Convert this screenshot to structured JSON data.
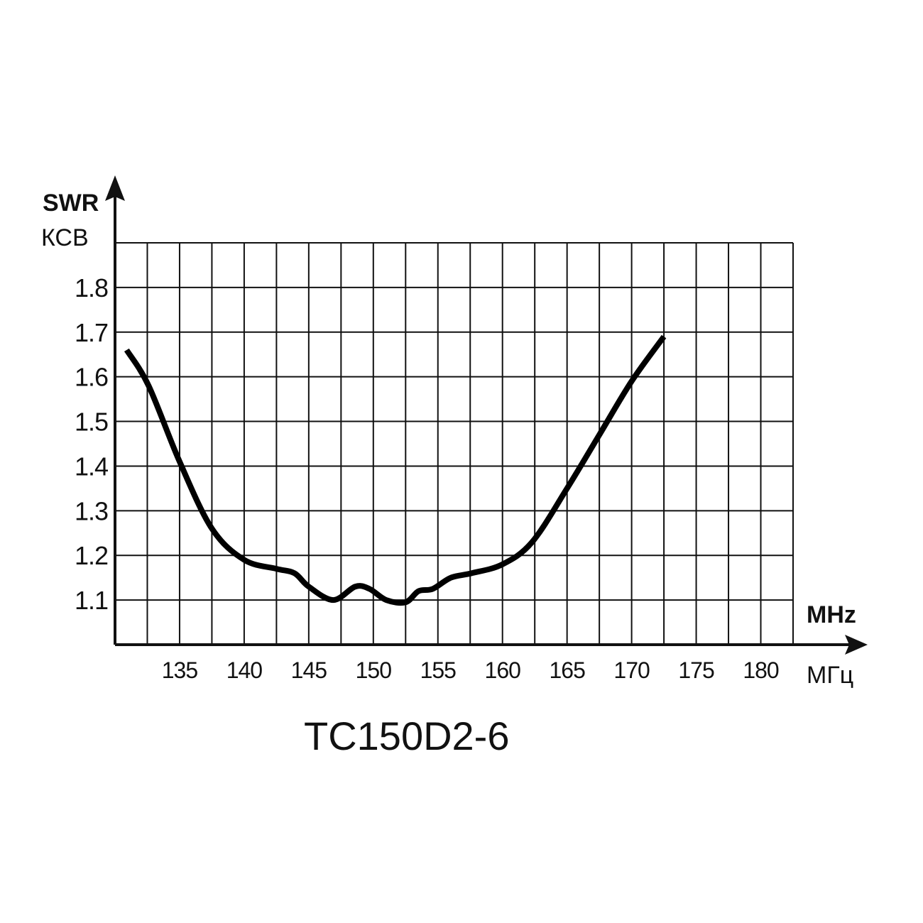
{
  "chart_data": {
    "type": "line",
    "title": "TC150D2-6",
    "xlabel": "MHz",
    "xlabel_alt": "МГц",
    "ylabel": "SWR",
    "ylabel_alt": "КСВ",
    "xlim": [
      130,
      182.5
    ],
    "ylim": [
      1.0,
      1.9
    ],
    "x_grid_step": 2.5,
    "y_grid_step": 0.1,
    "grid": true,
    "x_ticks": [
      "135",
      "140",
      "145",
      "150",
      "155",
      "160",
      "165",
      "170",
      "175",
      "180"
    ],
    "y_ticks": [
      "1.1",
      "1.2",
      "1.3",
      "1.4",
      "1.5",
      "1.6",
      "1.7",
      "1.8"
    ],
    "series": [
      {
        "name": "SWR",
        "x": [
          130.9,
          132.6,
          135,
          137.5,
          140,
          142.5,
          143.9,
          145,
          146.9,
          148.6,
          149.7,
          151,
          152.5,
          153.5,
          154.6,
          156,
          157.6,
          160,
          162.3,
          165,
          167.5,
          170,
          172.5
        ],
        "y": [
          1.66,
          1.58,
          1.41,
          1.26,
          1.19,
          1.17,
          1.16,
          1.13,
          1.1,
          1.13,
          1.125,
          1.1,
          1.095,
          1.12,
          1.125,
          1.15,
          1.16,
          1.18,
          1.23,
          1.35,
          1.47,
          1.59,
          1.69
        ]
      }
    ]
  }
}
